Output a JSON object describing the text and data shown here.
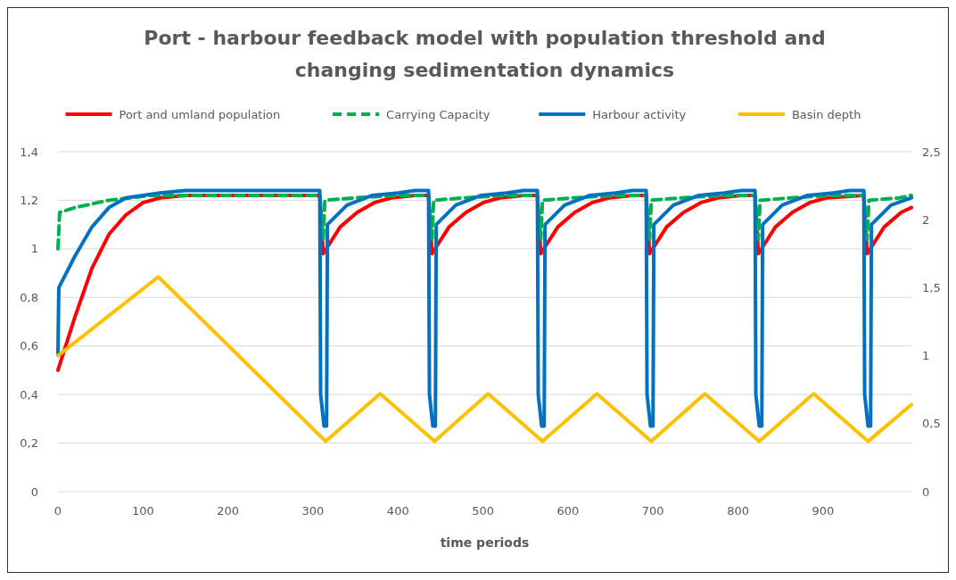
{
  "chart_data": {
    "type": "line",
    "title": "Port - harbour feedback model with population threshold and\nchanging sedimentation dynamics",
    "xlabel": "time periods",
    "xlim": [
      0,
      1004
    ],
    "xticks": [
      0,
      100,
      200,
      300,
      400,
      500,
      600,
      700,
      800,
      900
    ],
    "ylim": [
      0,
      1.4
    ],
    "yticks": [
      0,
      {
        "value": 0.2,
        "label": "0,2"
      },
      {
        "value": 0.4,
        "label": "0,4"
      },
      {
        "value": 0.6,
        "label": "0,6"
      },
      {
        "value": 0.8,
        "label": "0,8"
      },
      1,
      {
        "value": 1.2,
        "label": "1,2"
      },
      {
        "value": 1.4,
        "label": "1,4"
      }
    ],
    "y2lim": [
      0,
      2.5
    ],
    "y2ticks": [
      0,
      {
        "value": 0.5,
        "label": "0,5"
      },
      1,
      {
        "value": 1.5,
        "label": "1,5"
      },
      2,
      {
        "value": 2.5,
        "label": "2,5"
      }
    ],
    "grid": "y",
    "legend": "top",
    "marker": "none",
    "series": [
      {
        "name": "Port and umland population",
        "color": "#ff0000",
        "line_style": "solid",
        "x": [
          0,
          20,
          40,
          60,
          80,
          100,
          120,
          150,
          308,
          312,
          332,
          352,
          372,
          392,
          420,
          436,
          440,
          460,
          480,
          500,
          520,
          548,
          564,
          568,
          588,
          608,
          628,
          648,
          676,
          692,
          696,
          716,
          736,
          756,
          776,
          804,
          820,
          824,
          844,
          864,
          884,
          904,
          948,
          952,
          972,
          992,
          1004
        ],
        "values": [
          0.5,
          0.72,
          0.92,
          1.06,
          1.14,
          1.19,
          1.21,
          1.22,
          1.22,
          0.98,
          1.09,
          1.15,
          1.19,
          1.21,
          1.22,
          1.22,
          0.98,
          1.09,
          1.15,
          1.19,
          1.21,
          1.22,
          1.22,
          0.98,
          1.09,
          1.15,
          1.19,
          1.21,
          1.22,
          1.22,
          0.98,
          1.09,
          1.15,
          1.19,
          1.21,
          1.22,
          1.22,
          0.98,
          1.09,
          1.15,
          1.19,
          1.21,
          1.22,
          0.98,
          1.09,
          1.15,
          1.17
        ]
      },
      {
        "name": "Carrying Capacity",
        "color": "#00b050",
        "line_style": "dashed",
        "x": [
          0,
          2,
          20,
          60,
          110,
          308,
          312,
          314,
          350,
          400,
          436,
          440,
          442,
          478,
          528,
          564,
          568,
          570,
          606,
          656,
          692,
          696,
          698,
          734,
          784,
          820,
          824,
          826,
          862,
          912,
          948,
          952,
          954,
          990,
          1004
        ],
        "values": [
          1.0,
          1.15,
          1.17,
          1.2,
          1.22,
          1.22,
          1.04,
          1.2,
          1.21,
          1.22,
          1.22,
          1.04,
          1.2,
          1.21,
          1.22,
          1.22,
          1.04,
          1.2,
          1.21,
          1.22,
          1.22,
          1.04,
          1.2,
          1.21,
          1.22,
          1.22,
          1.04,
          1.2,
          1.21,
          1.22,
          1.22,
          1.04,
          1.2,
          1.21,
          1.22
        ]
      },
      {
        "name": "Harbour activity",
        "color": "#0070c0",
        "line_style": "solid",
        "x": [
          0,
          1,
          20,
          40,
          60,
          80,
          100,
          120,
          150,
          308,
          309,
          313,
          316,
          317,
          340,
          370,
          400,
          420,
          436,
          437,
          441,
          444,
          445,
          468,
          498,
          528,
          548,
          564,
          565,
          569,
          572,
          573,
          596,
          626,
          656,
          676,
          692,
          693,
          697,
          700,
          701,
          724,
          754,
          784,
          804,
          820,
          821,
          825,
          828,
          829,
          852,
          882,
          912,
          932,
          948,
          949,
          953,
          956,
          957,
          980,
          1004
        ],
        "values": [
          0.57,
          0.84,
          0.97,
          1.09,
          1.17,
          1.21,
          1.22,
          1.23,
          1.24,
          1.24,
          0.4,
          0.27,
          0.27,
          1.1,
          1.18,
          1.22,
          1.23,
          1.24,
          1.24,
          0.4,
          0.27,
          0.27,
          1.1,
          1.18,
          1.22,
          1.23,
          1.24,
          1.24,
          0.4,
          0.27,
          0.27,
          1.1,
          1.18,
          1.22,
          1.23,
          1.24,
          1.24,
          0.4,
          0.27,
          0.27,
          1.1,
          1.18,
          1.22,
          1.23,
          1.24,
          1.24,
          0.4,
          0.27,
          0.27,
          1.1,
          1.18,
          1.22,
          1.23,
          1.24,
          1.24,
          0.4,
          0.27,
          0.27,
          1.1,
          1.18,
          1.21
        ]
      },
      {
        "name": "Basin depth",
        "color": "#ffc000",
        "line_style": "solid",
        "axis": "y2",
        "x": [
          0,
          118,
          315,
          379,
          443,
          506,
          570,
          634,
          698,
          761,
          825,
          889,
          953,
          1004
        ],
        "values": [
          1.0,
          1.58,
          0.37,
          0.72,
          0.37,
          0.72,
          0.37,
          0.72,
          0.37,
          0.72,
          0.37,
          0.72,
          0.37,
          0.64
        ]
      }
    ]
  }
}
